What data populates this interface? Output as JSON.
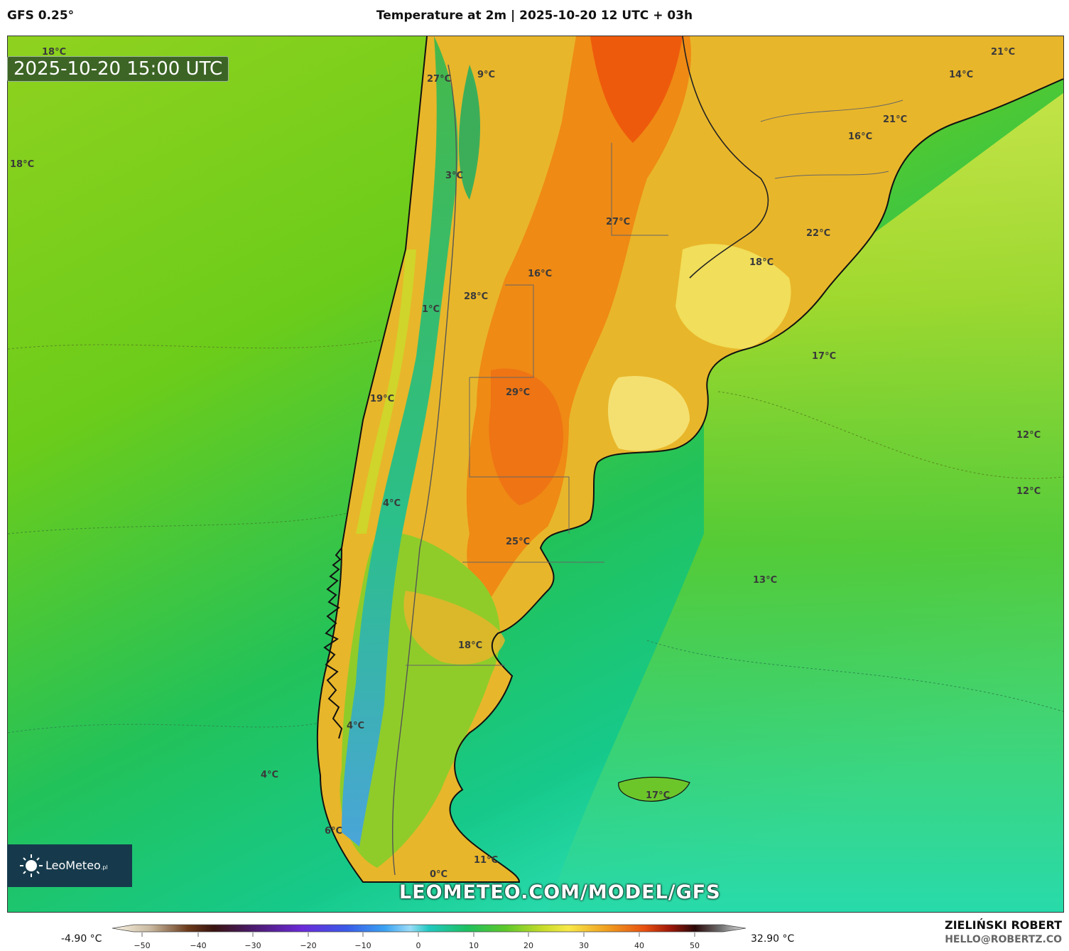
{
  "header": {
    "model": "GFS 0.25°",
    "title": "Temperature at 2m | 2025-10-20 12 UTC + 03h"
  },
  "map": {
    "valid_time": "2025-10-20 15:00 UTC",
    "temperature_labels": [
      {
        "id": "lbl-1",
        "text": "18°C"
      },
      {
        "id": "lbl-2",
        "text": "18°C"
      },
      {
        "id": "lbl-3",
        "text": "27°C"
      },
      {
        "id": "lbl-4",
        "text": "9°C"
      },
      {
        "id": "lbl-5",
        "text": "3°C"
      },
      {
        "id": "lbl-6",
        "text": "27°C"
      },
      {
        "id": "lbl-7",
        "text": "16°C"
      },
      {
        "id": "lbl-8",
        "text": "28°C"
      },
      {
        "id": "lbl-9",
        "text": "1°C"
      },
      {
        "id": "lbl-10",
        "text": "29°C"
      },
      {
        "id": "lbl-11",
        "text": "19°C"
      },
      {
        "id": "lbl-12",
        "text": "4°C"
      },
      {
        "id": "lbl-13",
        "text": "25°C"
      },
      {
        "id": "lbl-14",
        "text": "18°C"
      },
      {
        "id": "lbl-15",
        "text": "4°C"
      },
      {
        "id": "lbl-16",
        "text": "4°C"
      },
      {
        "id": "lbl-17",
        "text": "6°C"
      },
      {
        "id": "lbl-18",
        "text": "11°C"
      },
      {
        "id": "lbl-19",
        "text": "0°C"
      },
      {
        "id": "lbl-20",
        "text": "17°C"
      },
      {
        "id": "lbl-21",
        "text": "21°C"
      },
      {
        "id": "lbl-22",
        "text": "14°C"
      },
      {
        "id": "lbl-23",
        "text": "21°C"
      },
      {
        "id": "lbl-24",
        "text": "16°C"
      },
      {
        "id": "lbl-25",
        "text": "22°C"
      },
      {
        "id": "lbl-26",
        "text": "18°C"
      },
      {
        "id": "lbl-27",
        "text": "17°C"
      },
      {
        "id": "lbl-28",
        "text": "12°C"
      },
      {
        "id": "lbl-29",
        "text": "12°C"
      },
      {
        "id": "lbl-30",
        "text": "13°C"
      }
    ],
    "watermark_url": "LEOMETEO.COM/MODEL/GFS",
    "logo": {
      "text": "LeoMeteo",
      "suffix": ".pl"
    }
  },
  "colorbar": {
    "min_label": "-4.90 °C",
    "max_label": "32.90 °C",
    "ticks": [
      "−50",
      "−40",
      "−30",
      "−20",
      "−10",
      "0",
      "10",
      "20",
      "30",
      "40",
      "50"
    ]
  },
  "credits": {
    "author": "ZIELIŃSKI ROBERT",
    "email": "HELLO@ROBERTZ.CO"
  }
}
